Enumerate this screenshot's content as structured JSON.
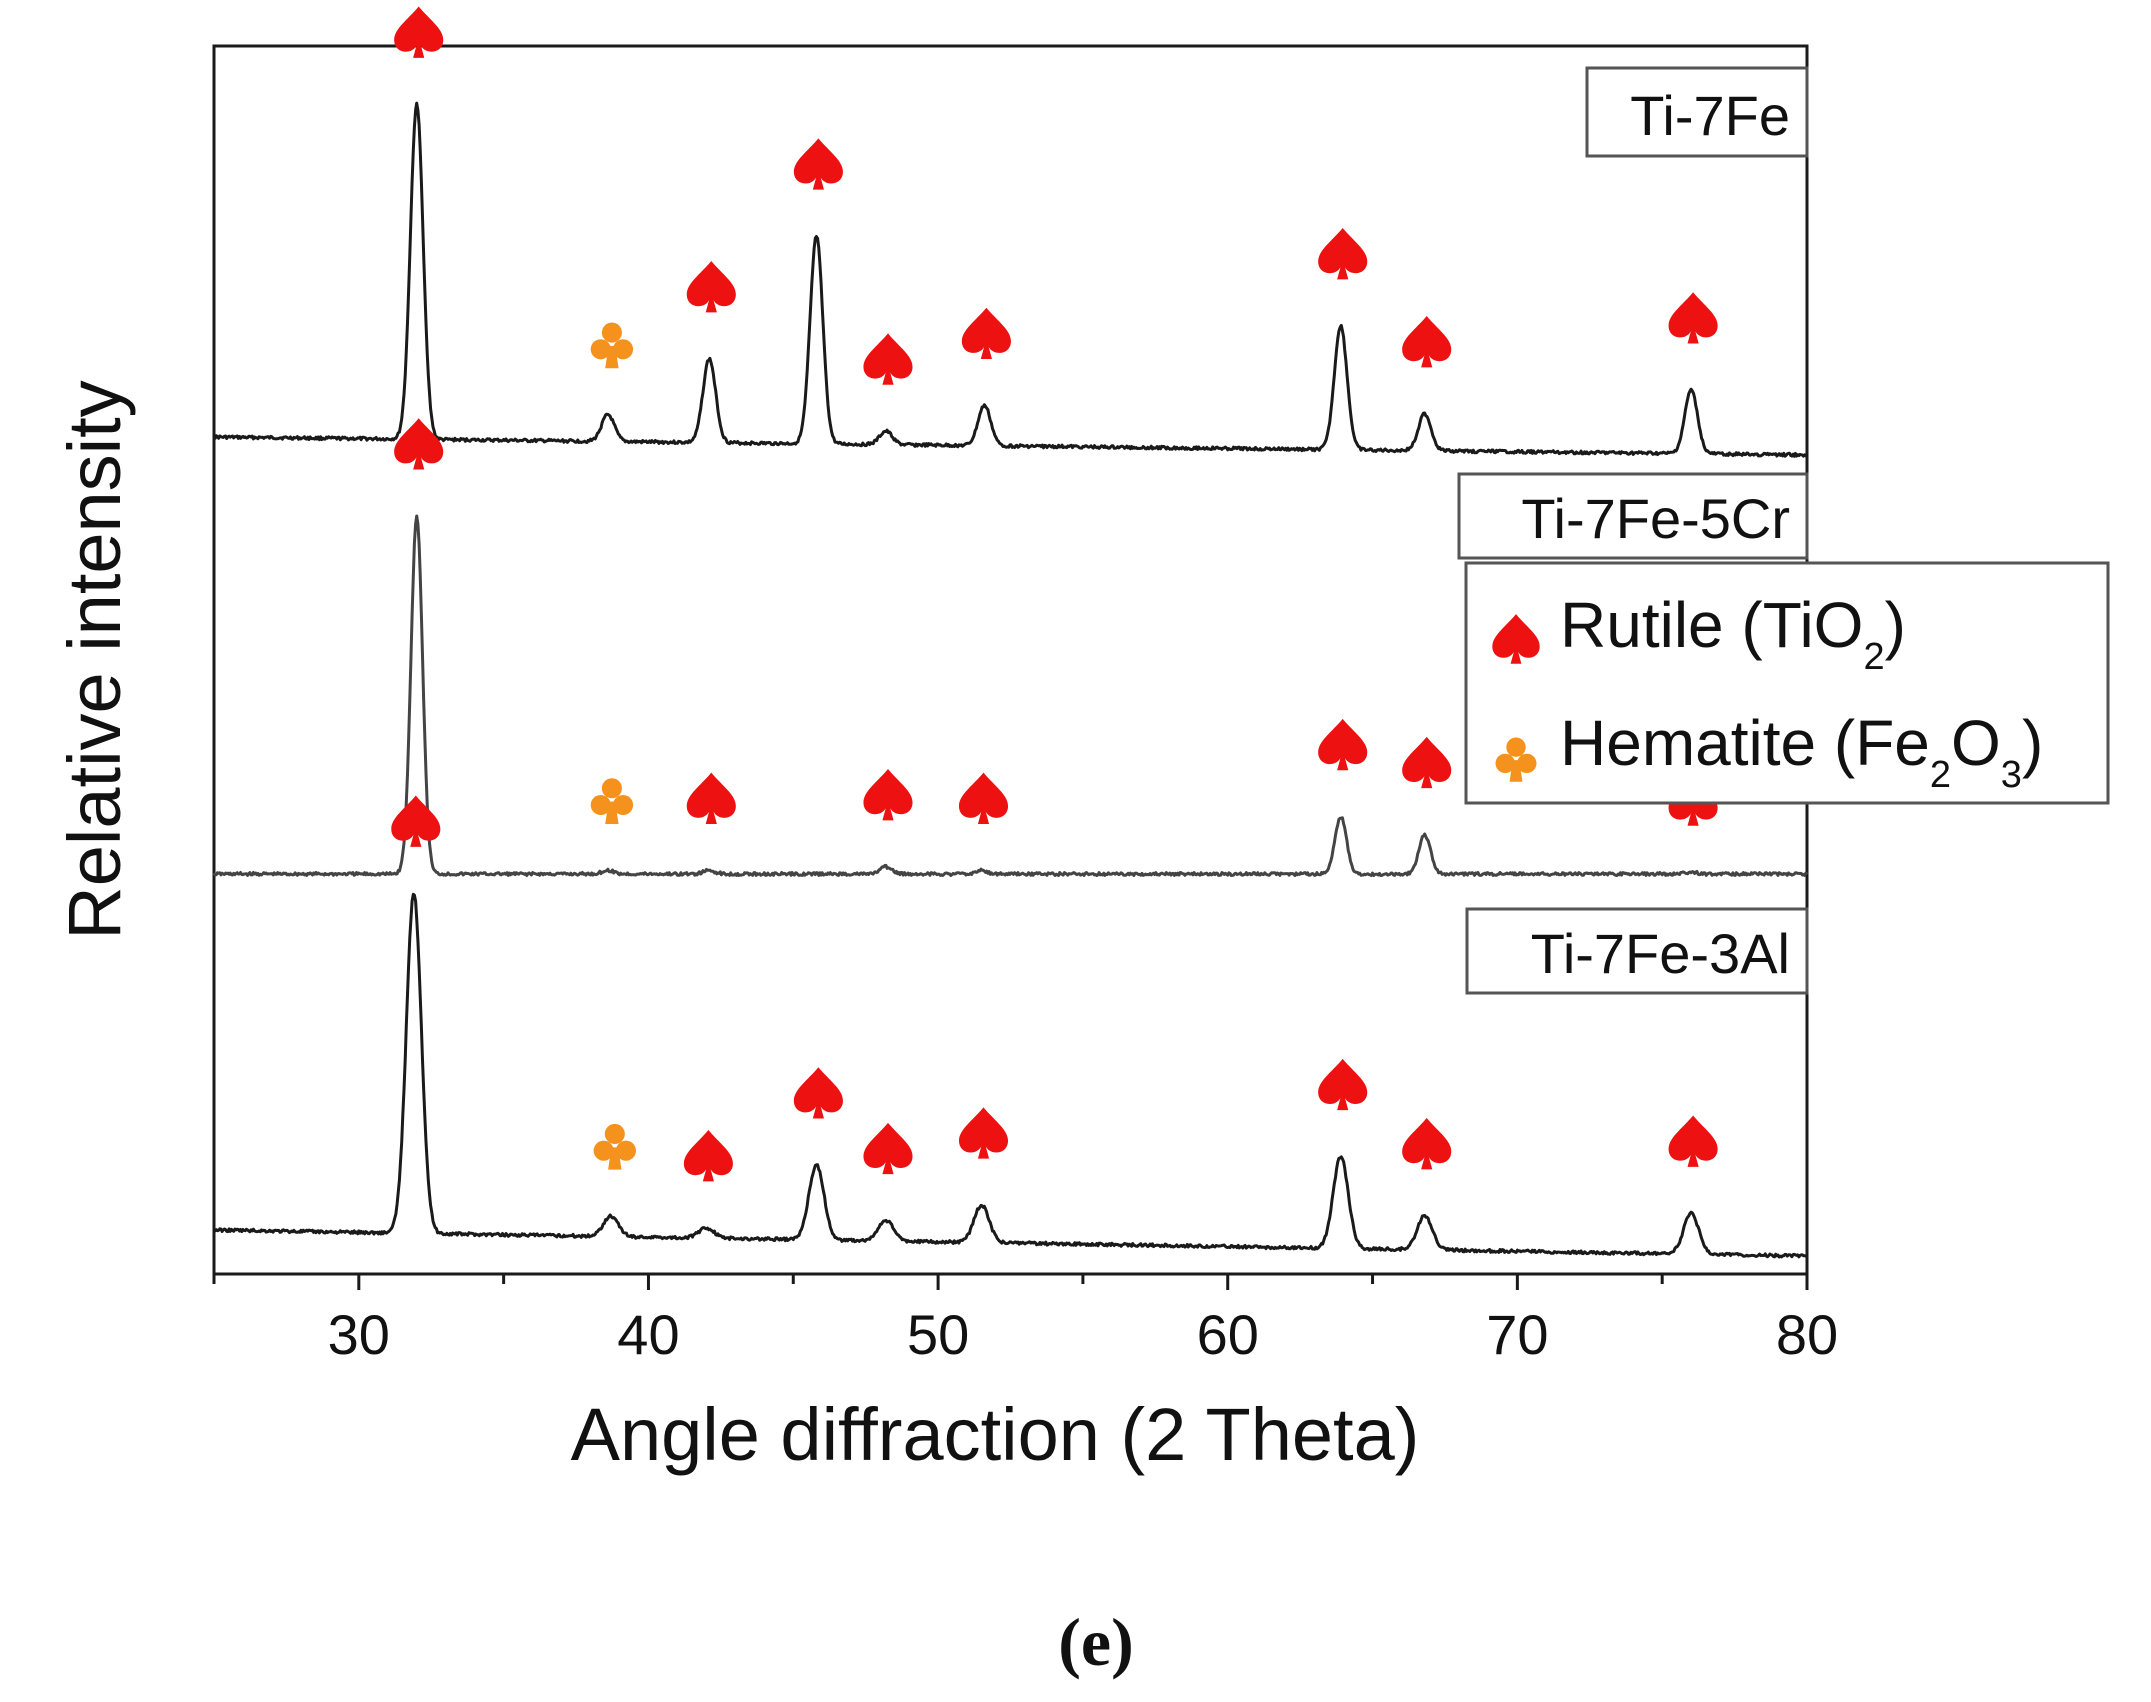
{
  "chart_data": {
    "type": "line",
    "xlabel": "Angle diffraction (2 Theta)",
    "ylabel": "Relative intensity",
    "xlim": [
      25,
      80
    ],
    "xticks": [
      30,
      40,
      50,
      60,
      70,
      80
    ],
    "xtick_labels": [
      "30",
      "40",
      "50",
      "60",
      "70",
      "80"
    ],
    "panel_label": "(e)",
    "colors": {
      "rutile": "#ee1111",
      "hematite": "#f5921e",
      "line": "#1a1a1a",
      "line_cr": "#444444"
    },
    "legend": {
      "entries": [
        {
          "key": "rutile",
          "label_main": "Rutile (TiO",
          "sub": "2",
          "label_end": ")"
        },
        {
          "key": "hematite",
          "label_main": "Hematite (Fe",
          "sub1": "2",
          "label_mid": "O",
          "sub2": "3",
          "label_end": ")"
        }
      ]
    },
    "series": [
      {
        "name": "Ti-7Fe",
        "baseline": 0.0,
        "peaks": [
          {
            "x": 32.0,
            "h": 1.0,
            "phase": "rutile"
          },
          {
            "x": 38.6,
            "h": 0.08,
            "phase": "hematite"
          },
          {
            "x": 42.1,
            "h": 0.25,
            "phase": "rutile"
          },
          {
            "x": 45.8,
            "h": 0.62,
            "phase": "rutile"
          },
          {
            "x": 48.2,
            "h": 0.04,
            "phase": "rutile"
          },
          {
            "x": 51.6,
            "h": 0.12,
            "phase": "rutile"
          },
          {
            "x": 63.9,
            "h": 0.37,
            "phase": "rutile"
          },
          {
            "x": 66.8,
            "h": 0.11,
            "phase": "rutile"
          },
          {
            "x": 76.0,
            "h": 0.19,
            "phase": "rutile"
          }
        ]
      },
      {
        "name": "Ti-7Fe-5Cr",
        "baseline": 0.0,
        "peaks": [
          {
            "x": 32.0,
            "h": 1.0,
            "phase": "rutile"
          },
          {
            "x": 38.6,
            "h": 0.01,
            "phase": "hematite"
          },
          {
            "x": 42.1,
            "h": 0.01,
            "phase": "rutile"
          },
          {
            "x": 48.2,
            "h": 0.02,
            "phase": "rutile"
          },
          {
            "x": 51.5,
            "h": 0.01,
            "phase": "rutile"
          },
          {
            "x": 63.9,
            "h": 0.16,
            "phase": "rutile"
          },
          {
            "x": 66.8,
            "h": 0.11,
            "phase": "rutile"
          },
          {
            "x": 76.0,
            "h": 0.005,
            "phase": "rutile"
          }
        ]
      },
      {
        "name": "Ti-7Fe-3Al",
        "baseline": 0.0,
        "peaks": [
          {
            "x": 31.9,
            "h": 1.0,
            "phase": "rutile"
          },
          {
            "x": 38.7,
            "h": 0.06,
            "phase": "hematite"
          },
          {
            "x": 42.0,
            "h": 0.03,
            "phase": "rutile"
          },
          {
            "x": 45.8,
            "h": 0.22,
            "phase": "rutile"
          },
          {
            "x": 48.2,
            "h": 0.06,
            "phase": "rutile"
          },
          {
            "x": 51.5,
            "h": 0.11,
            "phase": "rutile"
          },
          {
            "x": 63.9,
            "h": 0.27,
            "phase": "rutile"
          },
          {
            "x": 66.8,
            "h": 0.1,
            "phase": "rutile"
          },
          {
            "x": 76.0,
            "h": 0.12,
            "phase": "rutile"
          }
        ]
      }
    ]
  }
}
